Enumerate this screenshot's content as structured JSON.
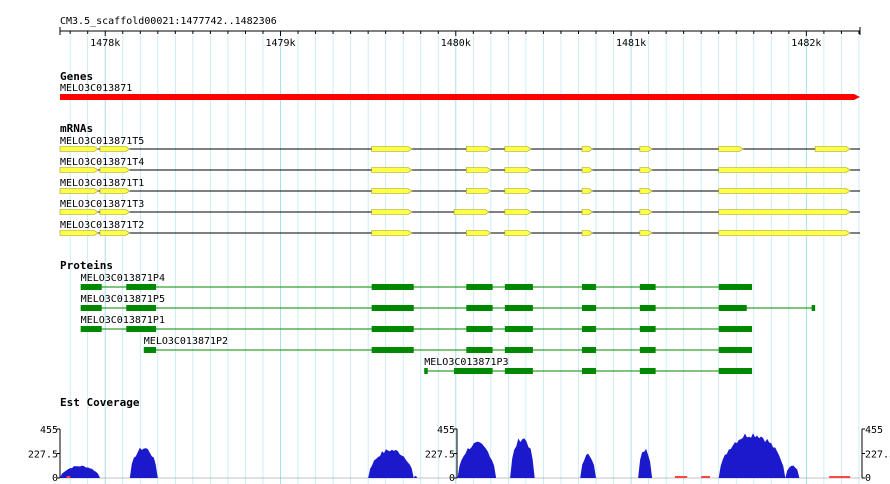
{
  "ruler": {
    "region": "CM3.5_scaffold00021:1477742..1482306",
    "start": 1477742,
    "end": 1482306,
    "ticks": [
      "1478k",
      "1479k",
      "1480k",
      "1481k",
      "1482k"
    ]
  },
  "tracks": {
    "genes_title": "Genes",
    "mrnas_title": "mRNAs",
    "proteins_title": "Proteins",
    "est_title": "Est Coverage"
  },
  "colors": {
    "grid": "#a8e0ee",
    "gene": "#ff0000",
    "mrna_fill": "#ffff44",
    "mrna_stroke": "#999933",
    "protein": "#008800",
    "coverage": "#1a1acc",
    "coverage_low": "#ff4444"
  },
  "genes": [
    {
      "name": "MELO3C013871",
      "start": 1477742,
      "end": 1482306
    }
  ],
  "mrnas": [
    {
      "name": "MELO3C013871T5",
      "span": [
        1477742,
        1482306
      ],
      "exons": [
        [
          1477742,
          1477960
        ],
        [
          1477970,
          1478140
        ],
        [
          1479520,
          1479750
        ],
        [
          1480060,
          1480200
        ],
        [
          1480280,
          1480430
        ],
        [
          1480720,
          1480780
        ],
        [
          1481050,
          1481120
        ],
        [
          1481500,
          1481640
        ],
        [
          1482050,
          1482250
        ]
      ]
    },
    {
      "name": "MELO3C013871T4",
      "span": [
        1477742,
        1482306
      ],
      "exons": [
        [
          1477742,
          1477960
        ],
        [
          1477970,
          1478140
        ],
        [
          1479520,
          1479750
        ],
        [
          1480060,
          1480200
        ],
        [
          1480280,
          1480430
        ],
        [
          1480720,
          1480780
        ],
        [
          1481050,
          1481120
        ],
        [
          1481500,
          1482250
        ]
      ]
    },
    {
      "name": "MELO3C013871T1",
      "span": [
        1477742,
        1482306
      ],
      "exons": [
        [
          1477742,
          1477960
        ],
        [
          1477970,
          1478140
        ],
        [
          1479520,
          1479750
        ],
        [
          1480060,
          1480200
        ],
        [
          1480280,
          1480430
        ],
        [
          1480720,
          1480780
        ],
        [
          1481050,
          1481120
        ],
        [
          1481500,
          1482250
        ]
      ]
    },
    {
      "name": "MELO3C013871T3",
      "span": [
        1477742,
        1482306
      ],
      "exons": [
        [
          1477742,
          1477960
        ],
        [
          1477970,
          1478140
        ],
        [
          1479520,
          1479750
        ],
        [
          1479990,
          1480190
        ],
        [
          1480280,
          1480430
        ],
        [
          1480720,
          1480780
        ],
        [
          1481050,
          1481120
        ],
        [
          1481500,
          1482250
        ]
      ]
    },
    {
      "name": "MELO3C013871T2",
      "span": [
        1477742,
        1482306
      ],
      "exons": [
        [
          1477742,
          1477960
        ],
        [
          1477970,
          1478140
        ],
        [
          1479520,
          1479750
        ],
        [
          1480060,
          1480200
        ],
        [
          1480280,
          1480430
        ],
        [
          1480720,
          1480780
        ],
        [
          1481050,
          1481120
        ],
        [
          1481500,
          1482250
        ]
      ]
    }
  ],
  "proteins": [
    {
      "name": "MELO3C013871P4",
      "span": [
        1477860,
        1481620
      ],
      "exons": [
        [
          1477860,
          1477980
        ],
        [
          1478120,
          1478290
        ],
        [
          1479520,
          1479760
        ],
        [
          1480060,
          1480210
        ],
        [
          1480280,
          1480440
        ],
        [
          1480720,
          1480800
        ],
        [
          1481050,
          1481140
        ],
        [
          1481500,
          1481690
        ]
      ]
    },
    {
      "name": "MELO3C013871P5",
      "span": [
        1477860,
        1482050
      ],
      "exons": [
        [
          1477860,
          1477980
        ],
        [
          1478120,
          1478290
        ],
        [
          1479520,
          1479760
        ],
        [
          1480060,
          1480210
        ],
        [
          1480280,
          1480440
        ],
        [
          1480720,
          1480800
        ],
        [
          1481050,
          1481140
        ],
        [
          1481500,
          1481660
        ],
        [
          1482030,
          1482050
        ]
      ]
    },
    {
      "name": "MELO3C013871P1",
      "span": [
        1477860,
        1481620
      ],
      "exons": [
        [
          1477860,
          1477980
        ],
        [
          1478120,
          1478290
        ],
        [
          1479520,
          1479760
        ],
        [
          1480060,
          1480210
        ],
        [
          1480280,
          1480440
        ],
        [
          1480720,
          1480800
        ],
        [
          1481050,
          1481140
        ],
        [
          1481500,
          1481690
        ]
      ]
    },
    {
      "name": "MELO3C013871P2",
      "span": [
        1478220,
        1481620
      ],
      "exons": [
        [
          1478220,
          1478290
        ],
        [
          1479520,
          1479760
        ],
        [
          1480060,
          1480210
        ],
        [
          1480280,
          1480440
        ],
        [
          1480720,
          1480800
        ],
        [
          1481050,
          1481140
        ],
        [
          1481500,
          1481690
        ]
      ]
    },
    {
      "name": "MELO3C013871P3",
      "span": [
        1479820,
        1481620
      ],
      "exons": [
        [
          1479820,
          1479840
        ],
        [
          1479990,
          1480210
        ],
        [
          1480280,
          1480440
        ],
        [
          1480720,
          1480800
        ],
        [
          1481050,
          1481140
        ],
        [
          1481500,
          1481690
        ]
      ]
    }
  ],
  "coverage": {
    "axis_labels": [
      "455",
      "227.5",
      "0"
    ],
    "max": 455,
    "peaks": [
      {
        "start": 1477742,
        "end": 1477970,
        "level": 120
      },
      {
        "start": 1478140,
        "end": 1478300,
        "level": 300
      },
      {
        "start": 1479500,
        "end": 1479760,
        "level": 280
      },
      {
        "start": 1479760,
        "end": 1479780,
        "level": 20
      },
      {
        "start": 1480010,
        "end": 1480230,
        "level": 340
      },
      {
        "start": 1480310,
        "end": 1480450,
        "level": 400
      },
      {
        "start": 1480710,
        "end": 1480800,
        "level": 230
      },
      {
        "start": 1481040,
        "end": 1481120,
        "level": 280
      },
      {
        "start": 1481500,
        "end": 1481880,
        "level": 440
      },
      {
        "start": 1481880,
        "end": 1481960,
        "level": 130
      }
    ],
    "low_segments": [
      [
        1477780,
        1477800
      ],
      [
        1481250,
        1481320
      ],
      [
        1481400,
        1481450
      ],
      [
        1482130,
        1482250
      ]
    ]
  }
}
